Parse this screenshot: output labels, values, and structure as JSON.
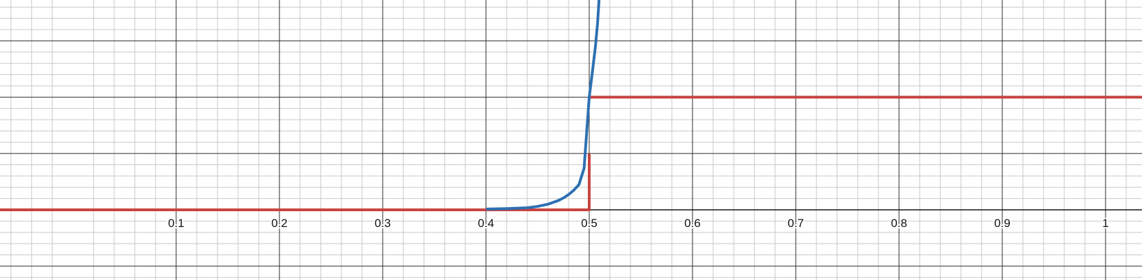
{
  "chart_data": {
    "type": "line",
    "xlim": [
      -0.0706,
      1.0353
    ],
    "ylim": [
      -0.623,
      1.863
    ],
    "grid": true,
    "x_ticks": [
      {
        "value": 0.1,
        "label": "0.1"
      },
      {
        "value": 0.2,
        "label": "0.2"
      },
      {
        "value": 0.3,
        "label": "0.3"
      },
      {
        "value": 0.4,
        "label": "0.4"
      },
      {
        "value": 0.5,
        "label": "0.5"
      },
      {
        "value": 0.6,
        "label": "0.6"
      },
      {
        "value": 0.7,
        "label": "0.7"
      },
      {
        "value": 0.8,
        "label": "0.8"
      },
      {
        "value": 0.9,
        "label": "0.9"
      },
      {
        "value": 1,
        "label": "1"
      }
    ],
    "series": [
      {
        "color": "#c74440",
        "x": [
          -0.0706,
          0.5,
          0.5,
          0.5,
          0.5,
          1.0353
        ],
        "y": [
          0,
          0,
          0.5,
          null,
          1,
          1
        ]
      },
      {
        "color": "#2d70b3",
        "x": [
          0.4,
          0.42,
          0.44,
          0.45,
          0.46,
          0.47,
          0.475,
          0.48,
          0.485,
          0.49,
          0.495,
          0.5,
          0.503,
          0.506,
          0.508,
          0.5095
        ],
        "y": [
          0.0067,
          0.0111,
          0.0183,
          0.0302,
          0.0498,
          0.0821,
          0.1054,
          0.1353,
          0.1738,
          0.2231,
          0.3679,
          1.0,
          1.22,
          1.45,
          1.65,
          1.863
        ]
      }
    ]
  }
}
